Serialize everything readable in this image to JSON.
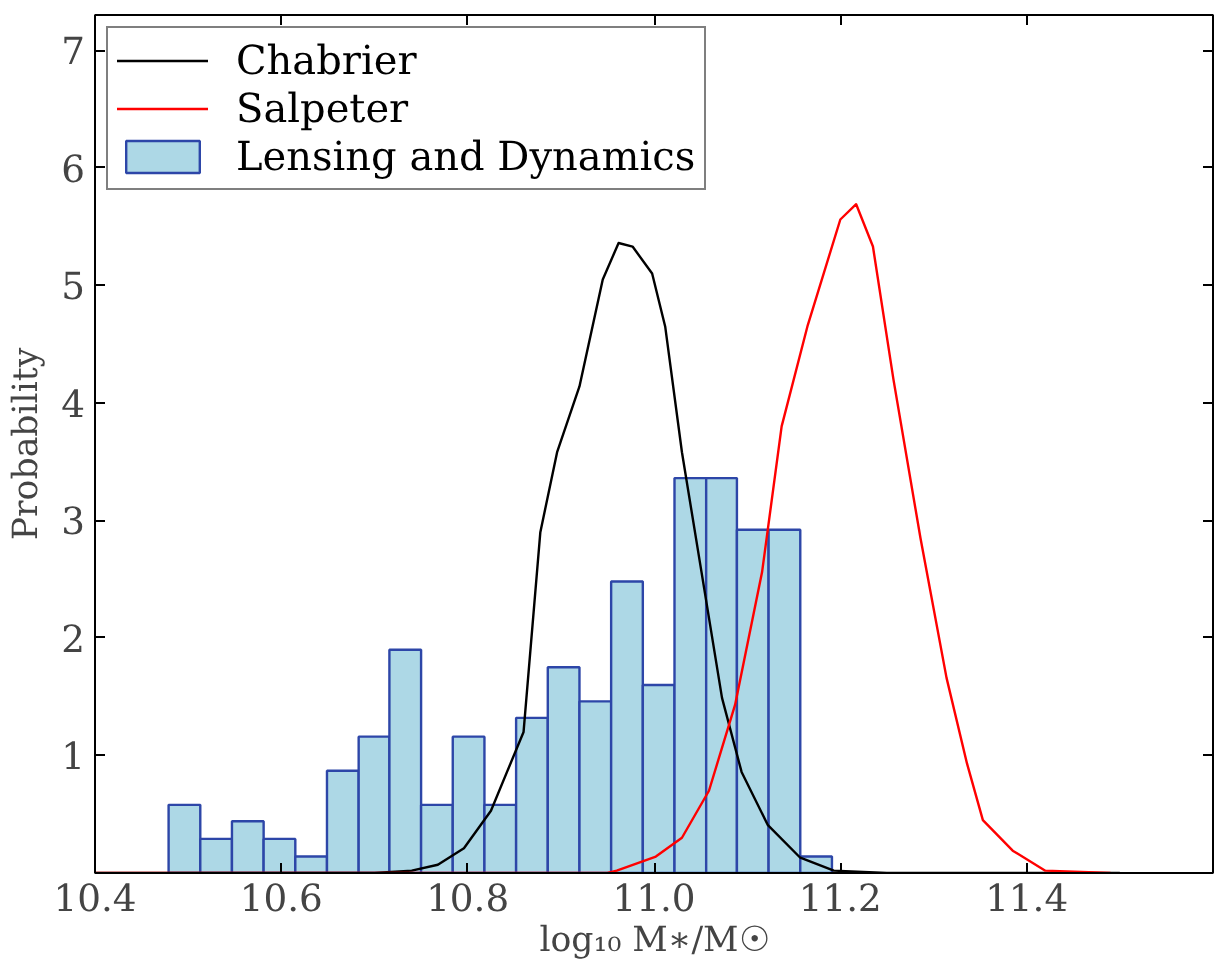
{
  "chart_data": {
    "type": "histogram",
    "xlabel": "log₁₀ M∗/M☉",
    "ylabel": "Probability",
    "xlim": [
      10.4,
      11.6
    ],
    "ylim": [
      0,
      7.3
    ],
    "xticks": [
      10.4,
      10.6,
      10.8,
      {
        "value": 11,
        "label": "11.0"
      },
      11.2,
      11.4
    ],
    "yticks": [
      1,
      2,
      3,
      4,
      5,
      6,
      7
    ],
    "legend": "top left",
    "grid": false,
    "series": [
      {
        "type": "line",
        "name": "Chabrier",
        "color": "#000000",
        "x": [
          10.4,
          10.7,
          10.74,
          10.768,
          10.796,
          10.825,
          10.86,
          10.878,
          10.896,
          10.92,
          10.945,
          10.962,
          10.977,
          10.998,
          11.012,
          11.03,
          11.051,
          11.073,
          11.094,
          11.122,
          11.157,
          11.193,
          11.25,
          11.5
        ],
        "values": [
          0,
          0,
          0.02,
          0.07,
          0.21,
          0.53,
          1.2,
          2.9,
          3.58,
          4.14,
          5.05,
          5.36,
          5.33,
          5.1,
          4.65,
          3.58,
          2.56,
          1.49,
          0.86,
          0.41,
          0.13,
          0.02,
          0,
          0
        ]
      },
      {
        "type": "line",
        "name": "Salpeter",
        "color": "#ff0000",
        "x": [
          10.4,
          10.95,
          10.96,
          11.002,
          11.03,
          11.059,
          11.087,
          11.116,
          11.137,
          11.165,
          11.2,
          11.217,
          11.235,
          11.257,
          11.286,
          11.314,
          11.336,
          11.353,
          11.385,
          11.42,
          11.49
        ],
        "values": [
          0,
          0,
          0.02,
          0.14,
          0.3,
          0.7,
          1.43,
          2.56,
          3.8,
          4.66,
          5.56,
          5.69,
          5.33,
          4.2,
          2.85,
          1.66,
          0.93,
          0.45,
          0.19,
          0.02,
          0
        ]
      },
      {
        "name": "Lensing and Dynamics",
        "color": "#add8e6",
        "bins": [
          10.479,
          10.513,
          10.547,
          10.581,
          10.615,
          10.649,
          10.683,
          10.716,
          10.75,
          10.784,
          10.818,
          10.852,
          10.886,
          10.92,
          10.954,
          10.988,
          11.022,
          11.056,
          11.089,
          11.123,
          11.157,
          11.191
        ],
        "values": [
          0.58,
          0.29,
          0.44,
          0.29,
          0.14,
          0.87,
          1.16,
          1.9,
          0.58,
          1.16,
          0.58,
          1.32,
          1.75,
          1.46,
          2.48,
          1.6,
          3.36,
          3.36,
          2.92,
          2.92,
          0.14
        ]
      }
    ]
  }
}
